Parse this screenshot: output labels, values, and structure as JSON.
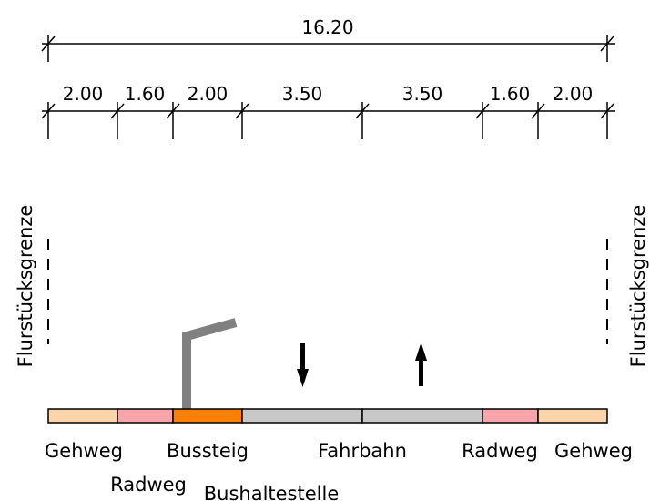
{
  "total_dimension": "16.20",
  "segment_dimensions": [
    "2.00",
    "1.60",
    "2.00",
    "3.50",
    "3.50",
    "1.60",
    "2.00"
  ],
  "boundary_label_left": "Flurstücksgrenze",
  "boundary_label_right": "Flurstücksgrenze",
  "strip_colors": [
    "#fbd5a9",
    "#f7a5ab",
    "#ff8000",
    "#c8c8c8",
    "#c8c8c8",
    "#f7a5ab",
    "#fbd5a9"
  ],
  "labels": {
    "gehweg_left": "Gehweg",
    "radweg_left": "Radweg",
    "bussteig": "Bussteig",
    "bushaltestelle": "Bushaltestelle",
    "fahrbahn": "Fahrbahn",
    "radweg_right": "Radweg",
    "gehweg_right": "Gehweg"
  },
  "bus_stop_pole_color": "#808080",
  "traffic_arrows": [
    "down",
    "up"
  ]
}
